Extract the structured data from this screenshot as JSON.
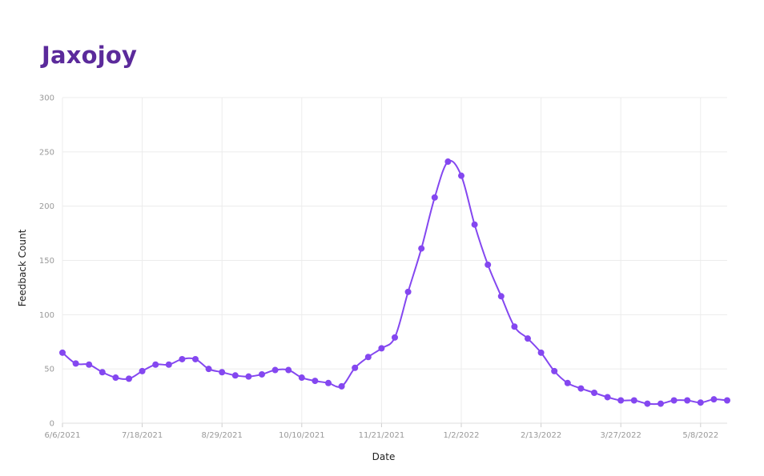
{
  "title": "Jaxojoy",
  "colors": {
    "title": "#5b2a9b",
    "series": "#8447f0",
    "grid": "#ececec",
    "tick": "#999999"
  },
  "chart_data": {
    "type": "line",
    "title": "Jaxojoy",
    "xlabel": "Date",
    "ylabel": "Feedback Count",
    "ylim": [
      0,
      300
    ],
    "y_ticks": [
      0,
      50,
      100,
      150,
      200,
      250,
      300
    ],
    "x_range": [
      "2021-06-06",
      "2022-05-22"
    ],
    "x_tick_labels": [
      "6/6/2021",
      "7/18/2021",
      "8/29/2021",
      "10/10/2021",
      "11/21/2021",
      "1/2/2022",
      "2/13/2022",
      "3/27/2022",
      "5/8/2022"
    ],
    "grid": true,
    "smooth": true,
    "markers": true,
    "x": [
      "2021-06-06",
      "2021-06-13",
      "2021-06-20",
      "2021-06-27",
      "2021-07-04",
      "2021-07-11",
      "2021-07-18",
      "2021-07-25",
      "2021-08-01",
      "2021-08-08",
      "2021-08-15",
      "2021-08-22",
      "2021-08-29",
      "2021-09-05",
      "2021-09-12",
      "2021-09-19",
      "2021-09-26",
      "2021-10-03",
      "2021-10-10",
      "2021-10-17",
      "2021-10-24",
      "2021-10-31",
      "2021-11-07",
      "2021-11-14",
      "2021-11-21",
      "2021-11-28",
      "2021-12-05",
      "2021-12-12",
      "2021-12-19",
      "2021-12-26",
      "2022-01-02",
      "2022-01-09",
      "2022-01-16",
      "2022-01-23",
      "2022-01-30",
      "2022-02-06",
      "2022-02-13",
      "2022-02-20",
      "2022-02-27",
      "2022-03-06",
      "2022-03-13",
      "2022-03-20",
      "2022-03-27",
      "2022-04-03",
      "2022-04-10",
      "2022-04-17",
      "2022-04-24",
      "2022-05-01",
      "2022-05-08",
      "2022-05-15",
      "2022-05-22"
    ],
    "series": [
      {
        "values": [
          65,
          55,
          54,
          47,
          42,
          41,
          48,
          54,
          54,
          59,
          59,
          50,
          47,
          44,
          43,
          45,
          49,
          49,
          42,
          39,
          37,
          34,
          51,
          61,
          69,
          79,
          121,
          161,
          208,
          241,
          228,
          183,
          146,
          117,
          89,
          78,
          65,
          48,
          37,
          32,
          28,
          24,
          21,
          21,
          18,
          18,
          21,
          21,
          19,
          22,
          21
        ]
      }
    ]
  }
}
